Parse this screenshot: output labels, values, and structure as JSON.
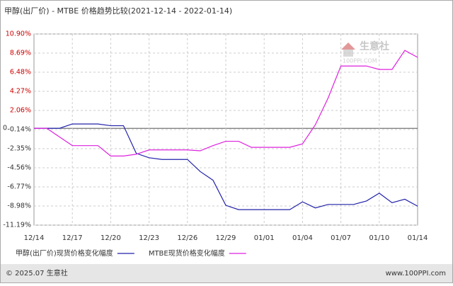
{
  "chart_data": {
    "type": "line",
    "title": "甲醇(出厂价) - MTBE 价格趋势比较(2021-12-14 - 2022-01-14)",
    "categories": [
      "12/14",
      null,
      null,
      "12/17",
      null,
      null,
      "12/20",
      null,
      null,
      "12/23",
      null,
      null,
      "12/26",
      null,
      null,
      "12/29",
      null,
      null,
      "01/01",
      null,
      null,
      "01/04",
      null,
      null,
      "01/07",
      null,
      null,
      "01/10",
      null,
      null,
      "01/14"
    ],
    "series": [
      {
        "name": "甲醇(出厂价)现货价格变化幅度",
        "color": "#2222aa",
        "values": [
          0,
          0,
          0,
          0.5,
          0.5,
          0.5,
          0.3,
          0.3,
          -2.9,
          -3.4,
          -3.6,
          -3.6,
          -3.6,
          -5.0,
          -6.0,
          -8.9,
          -9.4,
          -9.4,
          -9.4,
          -9.4,
          -9.4,
          -8.5,
          -9.2,
          -8.8,
          -8.8,
          -8.8,
          -8.4,
          -7.5,
          -8.6,
          -8.2,
          -9.0
        ]
      },
      {
        "name": "MTBE现货价格变化幅度",
        "color": "#dd22dd",
        "values": [
          0,
          0,
          -1.0,
          -2.0,
          -2.0,
          -2.0,
          -3.2,
          -3.2,
          -3.0,
          -2.5,
          -2.5,
          -2.5,
          -2.5,
          -2.6,
          -2.0,
          -1.5,
          -1.5,
          -2.2,
          -2.2,
          -2.2,
          -2.2,
          -1.8,
          0.4,
          3.5,
          7.2,
          7.2,
          7.2,
          6.8,
          6.8,
          9.0,
          8.2
        ]
      }
    ],
    "ylim": [
      -11.19,
      10.9
    ],
    "yticks": [
      {
        "value": 10.9,
        "label": "10.90%"
      },
      {
        "value": 8.69,
        "label": "8.69%"
      },
      {
        "value": 6.48,
        "label": "6.48%"
      },
      {
        "value": 4.27,
        "label": "4.27%"
      },
      {
        "value": 2.06,
        "label": "2.06%"
      },
      {
        "value": 0,
        "label": "0"
      },
      {
        "value": -0.14,
        "label": "-0.14%"
      },
      {
        "value": -2.35,
        "label": "-2.35%"
      },
      {
        "value": -4.56,
        "label": "-4.56%"
      },
      {
        "value": -6.77,
        "label": "-6.77%"
      },
      {
        "value": -8.98,
        "label": "-8.98%"
      },
      {
        "value": -11.19,
        "label": "-11.19%"
      }
    ],
    "grid": true,
    "watermark": {
      "name": "生意社",
      "site": "100PPI.COM"
    },
    "footer": {
      "copyright": "© 2025.07 生意社",
      "url": "www.100PPI.com"
    }
  }
}
